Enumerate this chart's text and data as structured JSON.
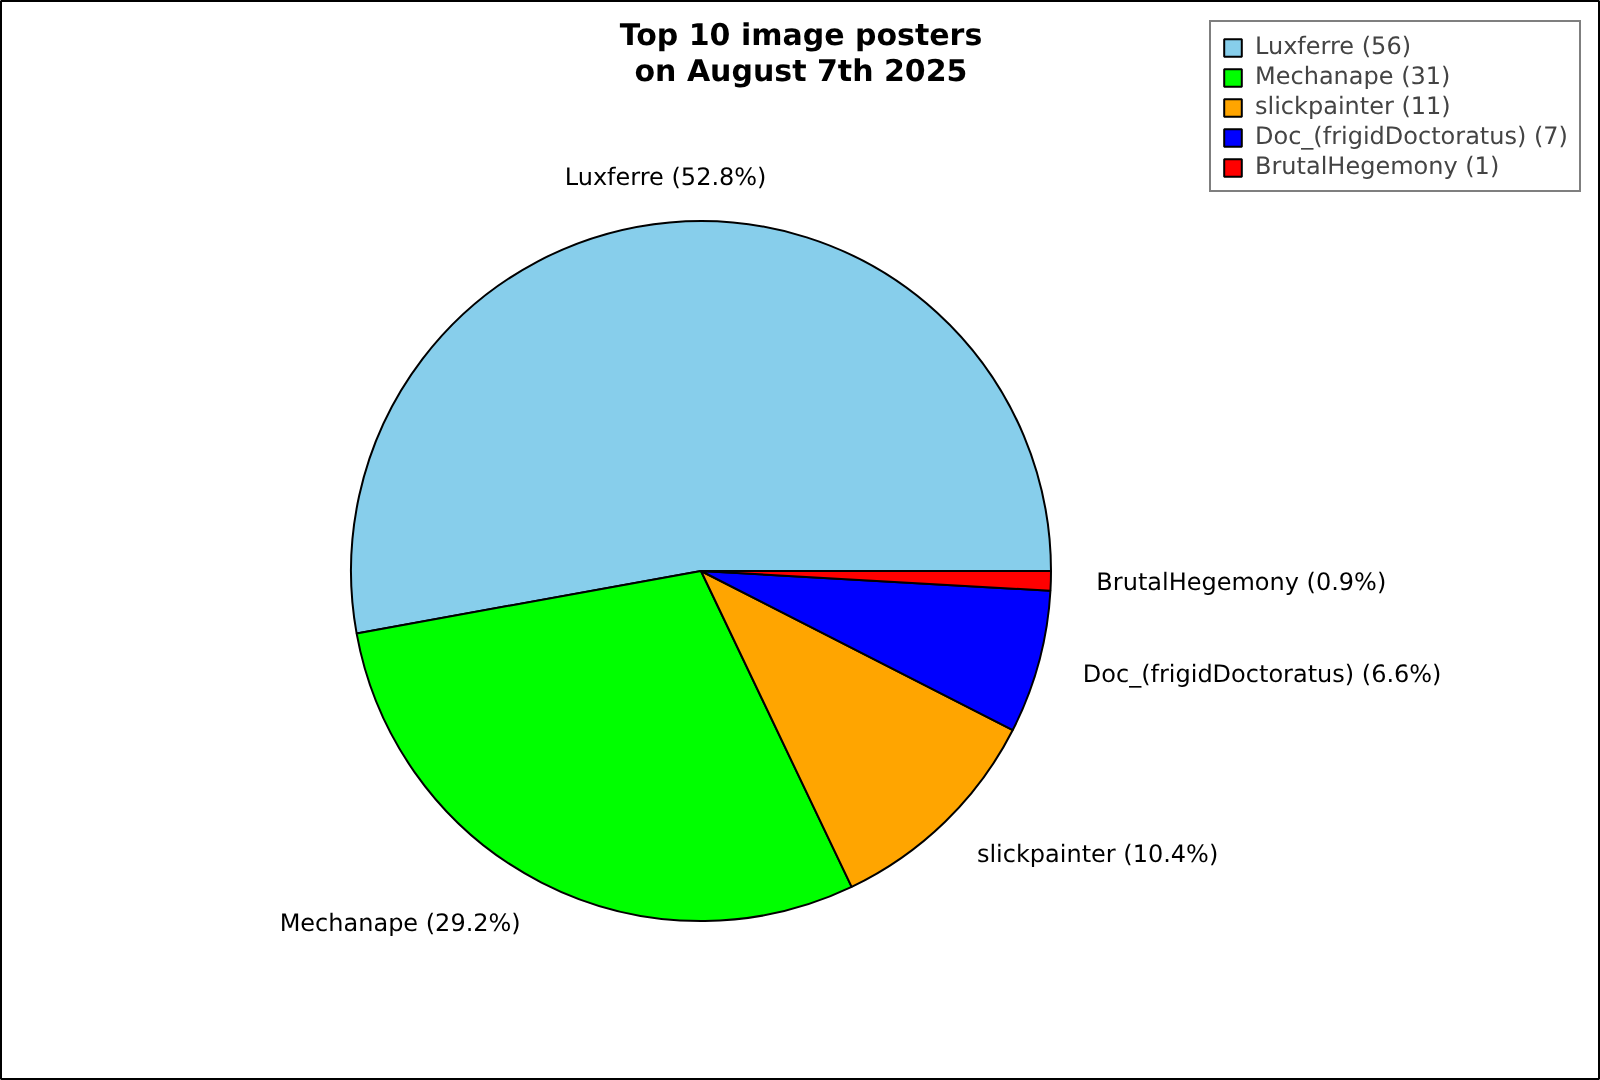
{
  "chart_data": {
    "type": "pie",
    "title": "Top 10 image posters\non August 7th 2025",
    "categories": [
      "Luxferre (56)",
      "Mechanape (31)",
      "slickpainter (11)",
      "Doc_(frigidDoctoratus) (7)",
      "BrutalHegemony (1)"
    ],
    "values": [
      52.8,
      29.2,
      10.4,
      6.6,
      0.9
    ],
    "value_labels": [
      "Luxferre (52.8%)",
      "Mechanape (29.2%)",
      "slickpainter (10.4%)",
      "Doc_(frigidDoctoratus) (6.6%)",
      "BrutalHegemony (0.9%)"
    ],
    "colors": [
      "#87ceeb",
      "#00ff00",
      "#ffa500",
      "#0000ff",
      "#ff0000"
    ],
    "legend": "top right"
  }
}
